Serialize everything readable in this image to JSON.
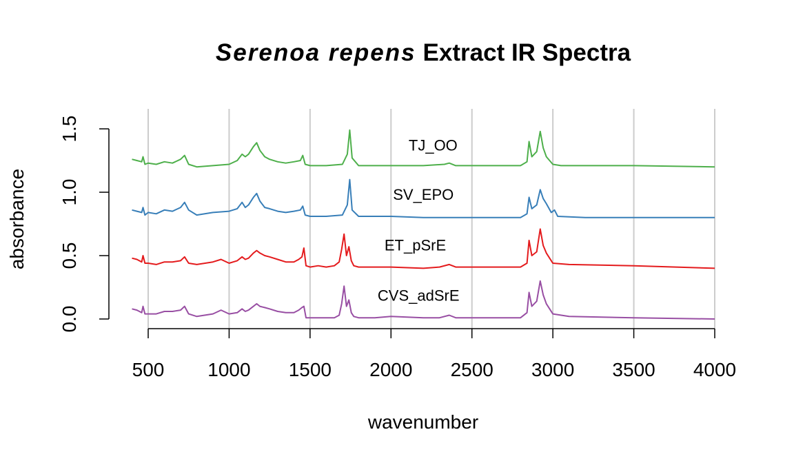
{
  "chart_data": {
    "type": "line",
    "title": {
      "italic": "Serenoa repens",
      "rest": "Extract IR Spectra"
    },
    "xlabel": "wavenumber",
    "ylabel": "absorbance",
    "xlim": [
      400,
      4000
    ],
    "ylim": [
      0,
      1.5
    ],
    "x_ticks": [
      500,
      1000,
      1500,
      2000,
      2500,
      3000,
      3500,
      4000
    ],
    "y_ticks": [
      "0.0",
      "0.5",
      "1.0",
      "1.5"
    ],
    "grid": "vertical",
    "series": [
      {
        "name": "TJ_OO",
        "color": "#4DAF4A",
        "label_x": 2260,
        "label_y": 1.33,
        "x": [
          400,
          430,
          460,
          468,
          480,
          500,
          550,
          600,
          650,
          700,
          725,
          750,
          800,
          900,
          1000,
          1050,
          1080,
          1100,
          1120,
          1150,
          1170,
          1190,
          1220,
          1250,
          1300,
          1350,
          1400,
          1440,
          1455,
          1470,
          1500,
          1600,
          1700,
          1730,
          1745,
          1760,
          1800,
          2000,
          2200,
          2330,
          2360,
          2400,
          2600,
          2800,
          2840,
          2853,
          2870,
          2900,
          2922,
          2940,
          2960,
          3000,
          3050,
          3200,
          3500,
          4000
        ],
        "y": [
          1.26,
          1.25,
          1.24,
          1.28,
          1.22,
          1.23,
          1.22,
          1.24,
          1.23,
          1.26,
          1.29,
          1.22,
          1.2,
          1.21,
          1.22,
          1.25,
          1.3,
          1.28,
          1.3,
          1.36,
          1.39,
          1.33,
          1.28,
          1.26,
          1.24,
          1.23,
          1.24,
          1.25,
          1.29,
          1.22,
          1.21,
          1.21,
          1.22,
          1.3,
          1.49,
          1.27,
          1.21,
          1.21,
          1.21,
          1.22,
          1.23,
          1.21,
          1.21,
          1.21,
          1.24,
          1.4,
          1.28,
          1.32,
          1.48,
          1.35,
          1.28,
          1.22,
          1.21,
          1.21,
          1.21,
          1.2
        ]
      },
      {
        "name": "SV_EPO",
        "color": "#377EB8",
        "label_x": 2200,
        "label_y": 0.94,
        "x": [
          400,
          430,
          460,
          468,
          480,
          500,
          550,
          600,
          650,
          700,
          725,
          750,
          800,
          900,
          1000,
          1050,
          1080,
          1100,
          1120,
          1150,
          1170,
          1190,
          1220,
          1250,
          1300,
          1350,
          1400,
          1440,
          1455,
          1470,
          1500,
          1600,
          1700,
          1730,
          1745,
          1760,
          1800,
          2000,
          2200,
          2400,
          2600,
          2800,
          2840,
          2853,
          2870,
          2900,
          2922,
          2940,
          2960,
          2990,
          3010,
          3030,
          3200,
          3500,
          4000
        ],
        "y": [
          0.86,
          0.85,
          0.84,
          0.88,
          0.82,
          0.84,
          0.83,
          0.86,
          0.85,
          0.88,
          0.92,
          0.86,
          0.82,
          0.84,
          0.85,
          0.87,
          0.92,
          0.88,
          0.9,
          0.96,
          0.99,
          0.93,
          0.88,
          0.87,
          0.85,
          0.84,
          0.85,
          0.86,
          0.89,
          0.82,
          0.81,
          0.81,
          0.82,
          0.9,
          1.1,
          0.86,
          0.81,
          0.81,
          0.8,
          0.8,
          0.8,
          0.8,
          0.83,
          0.96,
          0.87,
          0.9,
          1.02,
          0.95,
          0.91,
          0.84,
          0.86,
          0.81,
          0.8,
          0.8,
          0.8
        ]
      },
      {
        "name": "ET_pSrE",
        "color": "#E41A1C",
        "label_x": 2150,
        "label_y": 0.54,
        "x": [
          400,
          430,
          460,
          468,
          480,
          500,
          550,
          600,
          650,
          700,
          725,
          750,
          800,
          900,
          950,
          1000,
          1050,
          1080,
          1100,
          1120,
          1150,
          1170,
          1190,
          1220,
          1250,
          1300,
          1350,
          1400,
          1430,
          1450,
          1462,
          1475,
          1500,
          1550,
          1600,
          1650,
          1680,
          1695,
          1710,
          1725,
          1740,
          1755,
          1770,
          1800,
          1900,
          2000,
          2200,
          2300,
          2360,
          2400,
          2600,
          2800,
          2840,
          2853,
          2870,
          2900,
          2922,
          2940,
          2960,
          3000,
          3100,
          3500,
          4000
        ],
        "y": [
          0.48,
          0.47,
          0.45,
          0.5,
          0.44,
          0.44,
          0.43,
          0.45,
          0.45,
          0.46,
          0.49,
          0.44,
          0.43,
          0.45,
          0.47,
          0.44,
          0.46,
          0.49,
          0.47,
          0.48,
          0.52,
          0.54,
          0.52,
          0.5,
          0.49,
          0.47,
          0.45,
          0.45,
          0.47,
          0.49,
          0.56,
          0.42,
          0.41,
          0.42,
          0.41,
          0.42,
          0.45,
          0.55,
          0.67,
          0.5,
          0.57,
          0.46,
          0.42,
          0.41,
          0.41,
          0.41,
          0.4,
          0.41,
          0.43,
          0.41,
          0.41,
          0.41,
          0.44,
          0.62,
          0.5,
          0.53,
          0.71,
          0.58,
          0.52,
          0.44,
          0.43,
          0.42,
          0.4
        ]
      },
      {
        "name": "CVS_adSrE",
        "color": "#984EA3",
        "label_x": 2170,
        "label_y": 0.145,
        "x": [
          400,
          430,
          460,
          468,
          480,
          500,
          550,
          600,
          650,
          700,
          725,
          750,
          800,
          900,
          950,
          1000,
          1050,
          1080,
          1100,
          1120,
          1150,
          1170,
          1190,
          1220,
          1250,
          1300,
          1350,
          1400,
          1430,
          1450,
          1462,
          1475,
          1500,
          1600,
          1650,
          1680,
          1695,
          1710,
          1725,
          1740,
          1755,
          1770,
          1800,
          1900,
          2000,
          2200,
          2300,
          2360,
          2400,
          2600,
          2800,
          2840,
          2853,
          2870,
          2900,
          2922,
          2940,
          2960,
          3000,
          3100,
          3500,
          4000
        ],
        "y": [
          0.08,
          0.07,
          0.05,
          0.1,
          0.04,
          0.04,
          0.04,
          0.06,
          0.06,
          0.07,
          0.1,
          0.04,
          0.02,
          0.04,
          0.07,
          0.04,
          0.05,
          0.08,
          0.06,
          0.07,
          0.1,
          0.12,
          0.1,
          0.09,
          0.08,
          0.06,
          0.05,
          0.05,
          0.07,
          0.09,
          0.1,
          0.01,
          0.01,
          0.01,
          0.01,
          0.03,
          0.12,
          0.26,
          0.1,
          0.15,
          0.05,
          0.02,
          0.01,
          0.01,
          0.02,
          0.01,
          0.01,
          0.03,
          0.01,
          0.01,
          0.01,
          0.05,
          0.21,
          0.1,
          0.14,
          0.3,
          0.19,
          0.12,
          0.04,
          0.02,
          0.01,
          0.0
        ]
      }
    ]
  }
}
